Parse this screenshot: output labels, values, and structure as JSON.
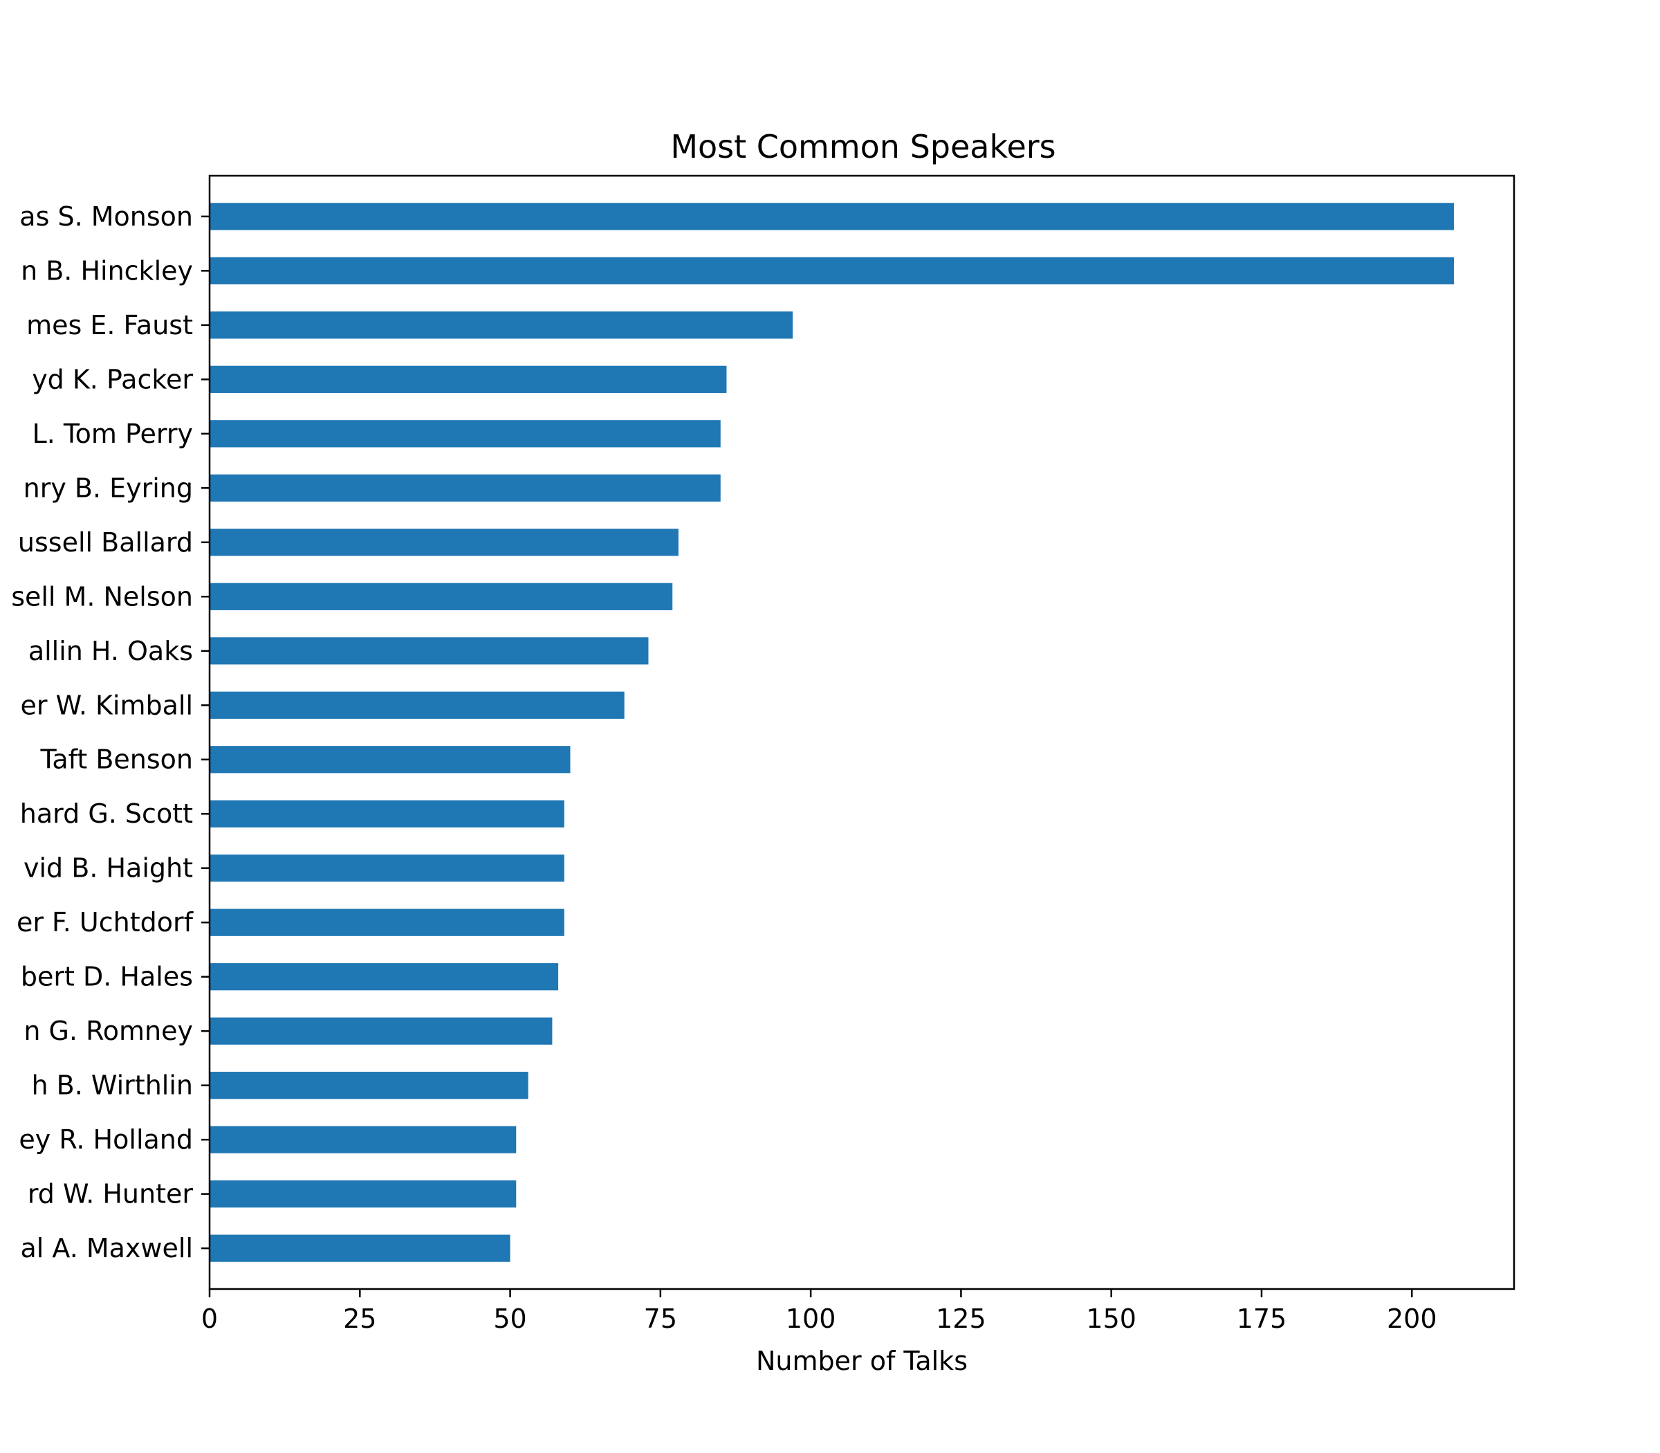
{
  "chart_data": {
    "type": "bar",
    "orientation": "horizontal",
    "title": "Most Common Speakers",
    "xlabel": "Number of Talks",
    "ylabel": "",
    "xlim": [
      0,
      217
    ],
    "xticks": [
      0,
      25,
      50,
      75,
      100,
      125,
      150,
      175,
      200
    ],
    "grid": false,
    "legend": "none",
    "bar_color": "#1f77b4",
    "categories": [
      "as S. Monson",
      "n B. Hinckley",
      "mes E. Faust",
      "yd K. Packer",
      "L. Tom Perry",
      "nry B. Eyring",
      "ussell Ballard",
      "sell M. Nelson",
      "allin H. Oaks",
      "er W. Kimball",
      " Taft Benson",
      "hard G. Scott",
      "vid B. Haight",
      "er F. Uchtdorf",
      "bert D. Hales",
      "n G. Romney",
      "h B. Wirthlin",
      "ey R. Holland",
      "rd W. Hunter",
      "al A. Maxwell"
    ],
    "values": [
      207,
      207,
      97,
      86,
      85,
      85,
      78,
      77,
      73,
      69,
      60,
      59,
      59,
      59,
      58,
      57,
      53,
      51,
      51,
      50
    ]
  }
}
